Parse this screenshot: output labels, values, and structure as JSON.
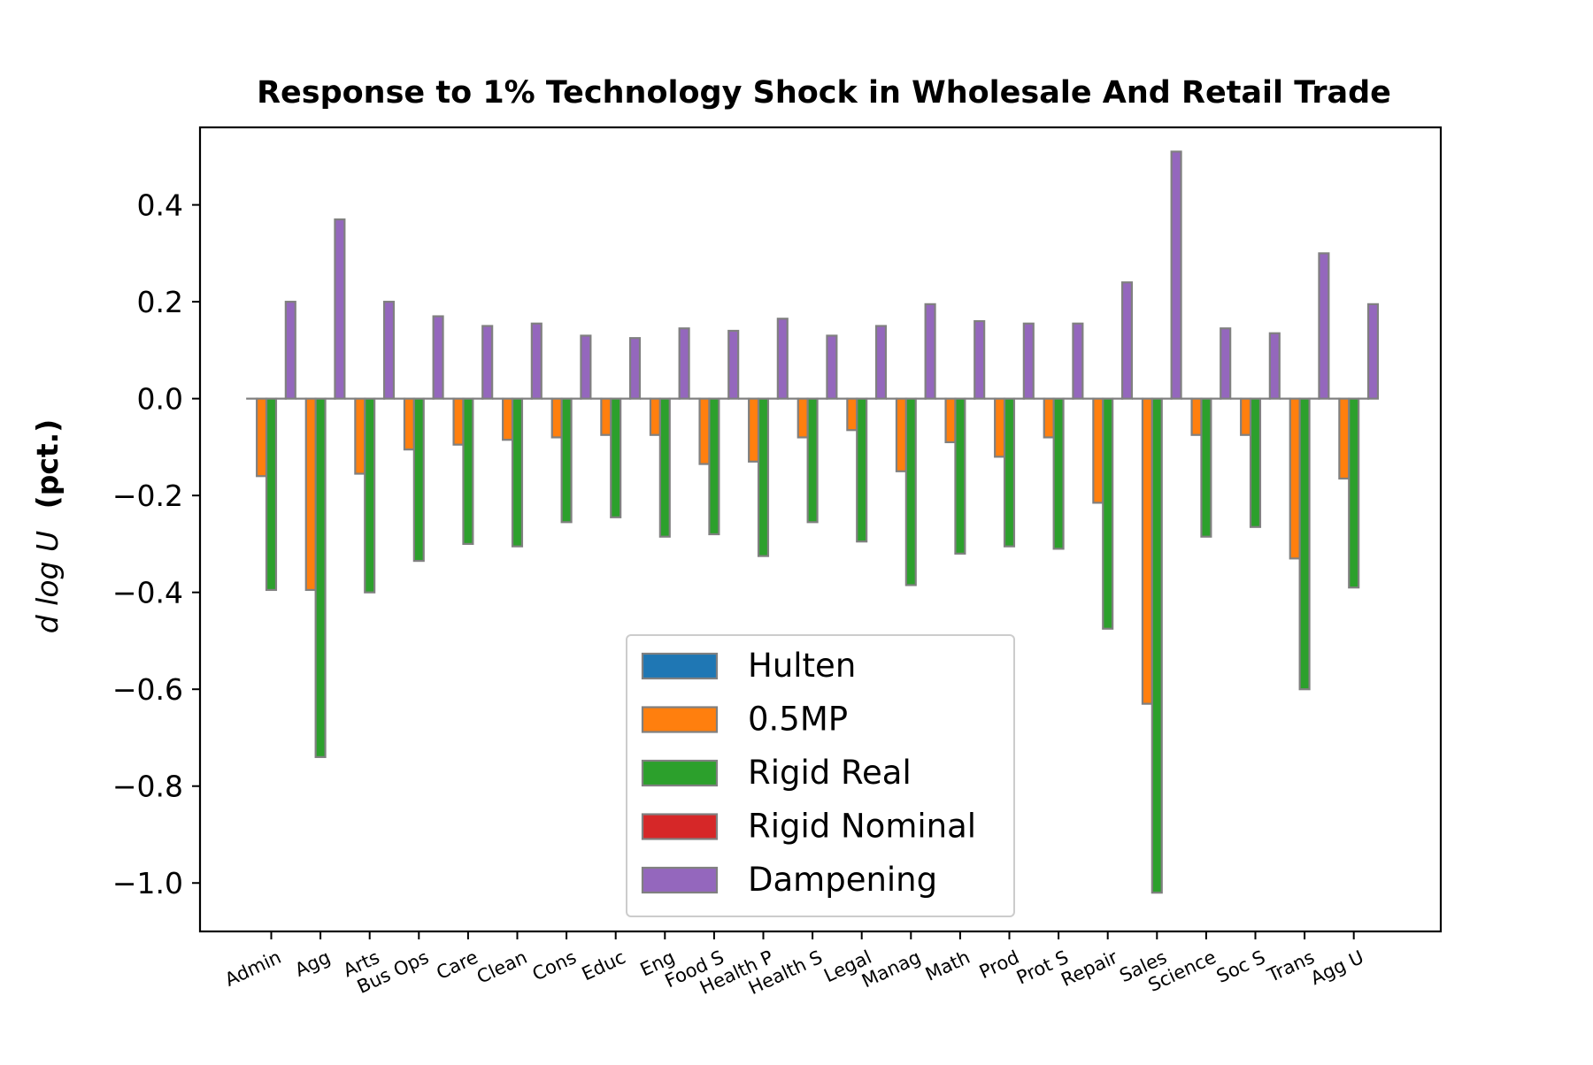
{
  "chart_data": {
    "type": "bar",
    "title": "Response to 1% Technology Shock in Wholesale And Retail Trade",
    "ylabel_math": "d log U",
    "ylabel_unit": "(pct.)",
    "ylim": [
      -1.1,
      0.56
    ],
    "yticks": [
      0.4,
      0.2,
      0.0,
      -0.2,
      -0.4,
      -0.6,
      -0.8,
      -1.0
    ],
    "ytick_labels": [
      "0.4",
      "0.2",
      "0.0",
      "−0.2",
      "−0.4",
      "−0.6",
      "−0.8",
      "−1.0"
    ],
    "categories": [
      "Admin",
      "Agg",
      "Arts",
      "Bus Ops",
      "Care",
      "Clean",
      "Cons",
      "Educ",
      "Eng",
      "Food S",
      "Health P",
      "Health S",
      "Legal",
      "Manag",
      "Math",
      "Prod",
      "Prot S",
      "Repair",
      "Sales",
      "Science",
      "Soc S",
      "Trans",
      "Agg U"
    ],
    "series": [
      {
        "name": "Hulten",
        "color": "#1f77b4",
        "values": [
          0,
          0,
          0,
          0,
          0,
          0,
          0,
          0,
          0,
          0,
          0,
          0,
          0,
          0,
          0,
          0,
          0,
          0,
          0,
          0,
          0,
          0,
          0
        ]
      },
      {
        "name": "0.5MP",
        "color": "#ff7f0e",
        "values": [
          -0.16,
          -0.395,
          -0.155,
          -0.105,
          -0.095,
          -0.085,
          -0.08,
          -0.075,
          -0.075,
          -0.135,
          -0.13,
          -0.08,
          -0.065,
          -0.15,
          -0.09,
          -0.12,
          -0.08,
          -0.215,
          -0.63,
          -0.075,
          -0.075,
          -0.33,
          -0.165
        ]
      },
      {
        "name": "Rigid Real",
        "color": "#2ca02c",
        "values": [
          -0.395,
          -0.74,
          -0.4,
          -0.335,
          -0.3,
          -0.305,
          -0.255,
          -0.245,
          -0.285,
          -0.28,
          -0.325,
          -0.255,
          -0.295,
          -0.385,
          -0.32,
          -0.305,
          -0.31,
          -0.475,
          -1.02,
          -0.285,
          -0.265,
          -0.6,
          -0.39
        ]
      },
      {
        "name": "Rigid Nominal",
        "color": "#d62728",
        "values": [
          0,
          0,
          0,
          0,
          0,
          0,
          0,
          0,
          0,
          0,
          0,
          0,
          0,
          0,
          0,
          0,
          0,
          0,
          0,
          0,
          0,
          0,
          0
        ]
      },
      {
        "name": "Dampening",
        "color": "#9467bd",
        "values": [
          0.2,
          0.37,
          0.2,
          0.17,
          0.15,
          0.155,
          0.13,
          0.125,
          0.145,
          0.14,
          0.165,
          0.13,
          0.15,
          0.195,
          0.16,
          0.155,
          0.155,
          0.24,
          0.51,
          0.145,
          0.135,
          0.3,
          0.195
        ]
      }
    ],
    "bar_edge_color": "#808080",
    "legend_position": "lower center",
    "grid": false
  }
}
